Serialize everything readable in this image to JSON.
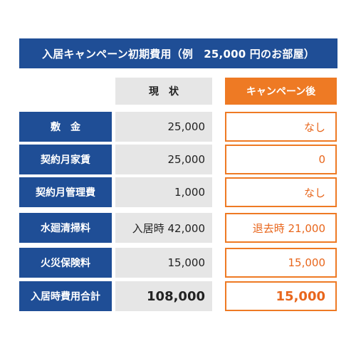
{
  "title": "入居キャンペーン初期費用（例　25,000 円のお部屋）",
  "columns": {
    "current": "現　状",
    "campaign": "キャンペーン後"
  },
  "rows": [
    {
      "label": "敷　金",
      "current": "25,000",
      "campaign": "なし"
    },
    {
      "label": "契約月家賃",
      "current": "25,000",
      "campaign": "0"
    },
    {
      "label": "契約月管理費",
      "current": "1,000",
      "campaign": "なし"
    },
    {
      "label": "水廻清掃料",
      "current": "入居時 42,000",
      "campaign": "退去時 21,000"
    },
    {
      "label": "火災保険料",
      "current": "15,000",
      "campaign": "15,000"
    },
    {
      "label": "入居時費用合計",
      "current": "108,000",
      "campaign": "15,000"
    }
  ],
  "colors": {
    "navy": "#1f4e96",
    "orange": "#ee7a24",
    "gray": "#e6e6e6"
  }
}
